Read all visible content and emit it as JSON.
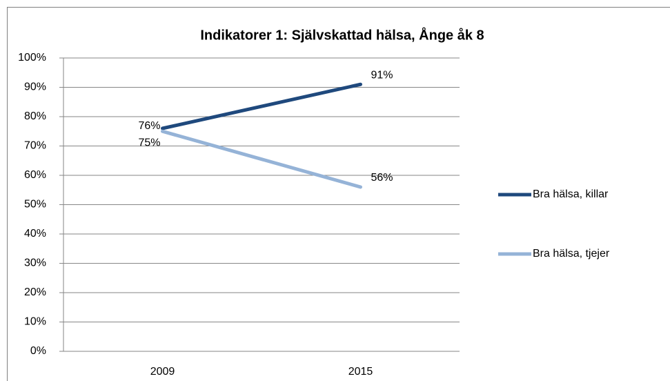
{
  "chart_data": {
    "type": "line",
    "title": "Indikatorer 1: Självskattad hälsa, Ånge åk 8",
    "categories": [
      "2009",
      "2015"
    ],
    "series": [
      {
        "name": "Bra hälsa, killar",
        "color": "#1f497d",
        "values": [
          76,
          91
        ],
        "value_labels": [
          "76%",
          "91%"
        ]
      },
      {
        "name": "Bra hälsa, tjejer",
        "color": "#95b3d7",
        "values": [
          75,
          56
        ],
        "value_labels": [
          "75%",
          "56%"
        ]
      }
    ],
    "ylim": [
      0,
      100
    ],
    "yticks": [
      {
        "value": 0,
        "label": "0%"
      },
      {
        "value": 10,
        "label": "10%"
      },
      {
        "value": 20,
        "label": "20%"
      },
      {
        "value": 30,
        "label": "30%"
      },
      {
        "value": 40,
        "label": "40%"
      },
      {
        "value": 50,
        "label": "50%"
      },
      {
        "value": 60,
        "label": "60%"
      },
      {
        "value": 70,
        "label": "70%"
      },
      {
        "value": 80,
        "label": "80%"
      },
      {
        "value": 90,
        "label": "90%"
      },
      {
        "value": 100,
        "label": "100%"
      }
    ],
    "grid": true,
    "legend": "right"
  }
}
